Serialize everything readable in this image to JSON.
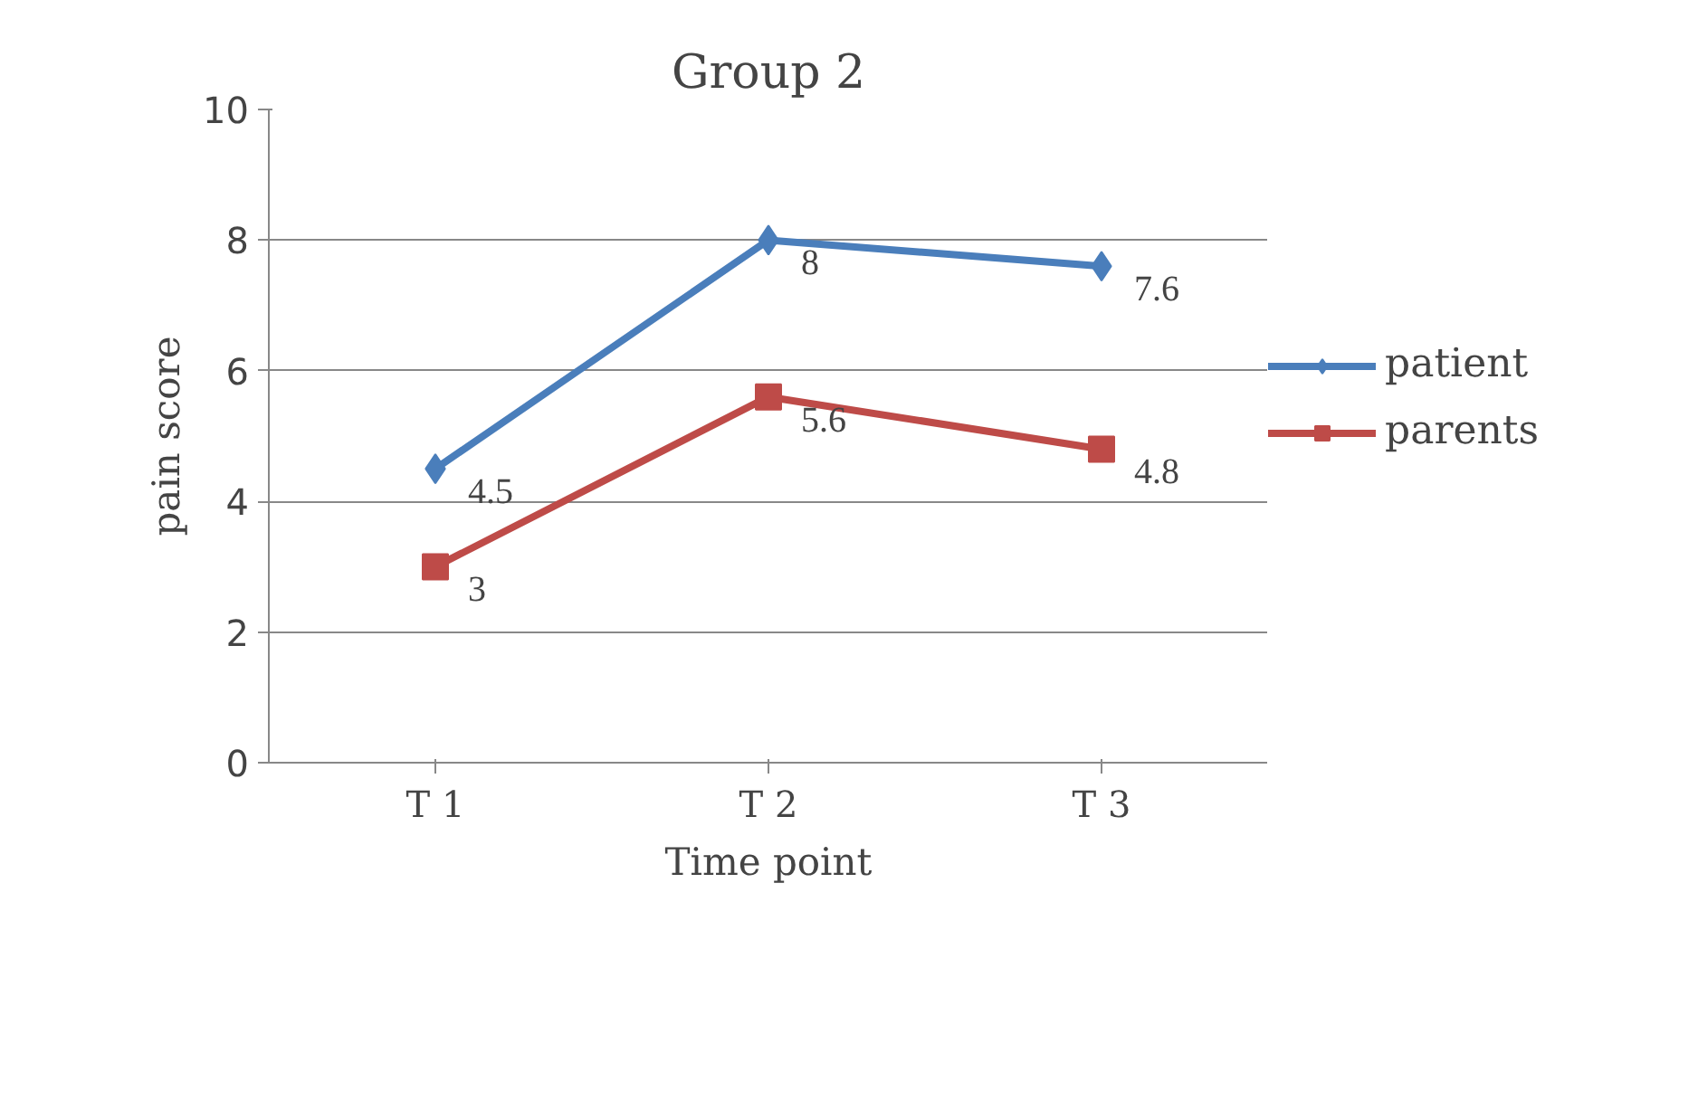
{
  "chart_data": {
    "type": "line",
    "title": "Group 2",
    "xlabel": "Time point",
    "ylabel": "pain score",
    "categories": [
      "T 1",
      "T 2",
      "T 3"
    ],
    "series": [
      {
        "name": "patient",
        "color": "#4a7ebb",
        "marker": "diamond",
        "values": [
          4.5,
          8,
          7.6
        ]
      },
      {
        "name": "parents",
        "color": "#be4b48",
        "marker": "square",
        "values": [
          3,
          5.6,
          4.8
        ]
      }
    ],
    "ylim": [
      0,
      10
    ],
    "yticks": [
      0,
      2,
      4,
      6,
      8,
      10
    ],
    "grid": "y",
    "legend": "right",
    "data_labels": true,
    "line_style": "solid"
  }
}
